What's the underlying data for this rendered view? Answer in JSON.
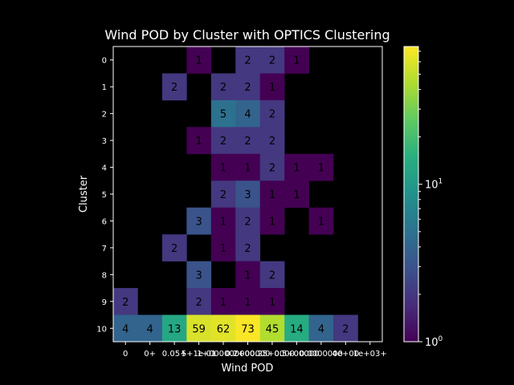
{
  "chart_data": {
    "type": "heatmap",
    "title": "Wind POD by Cluster with OPTICS Clustering",
    "xlabel": "Wind POD",
    "ylabel": "Cluster",
    "x_tick_labels": [
      "0",
      "0+",
      "0.05+",
      "5+1e-01",
      "1+00000000",
      "0.2+00000",
      "0.25+0000",
      "0.5+00000",
      "0.0000000",
      "4e+00",
      "1e+03+"
    ],
    "y_tick_labels": [
      "0",
      "1",
      "2",
      "3",
      "4",
      "5",
      "6",
      "7",
      "8",
      "9",
      "10"
    ],
    "values": [
      [
        null,
        null,
        null,
        1,
        null,
        2,
        2,
        1,
        null,
        null,
        null
      ],
      [
        null,
        null,
        2,
        null,
        2,
        2,
        1,
        null,
        null,
        null,
        null
      ],
      [
        null,
        null,
        null,
        null,
        5,
        4,
        2,
        null,
        null,
        null,
        null
      ],
      [
        null,
        null,
        null,
        1,
        2,
        2,
        2,
        null,
        null,
        null,
        null
      ],
      [
        null,
        null,
        null,
        null,
        1,
        1,
        2,
        1,
        1,
        null,
        null
      ],
      [
        null,
        null,
        null,
        null,
        2,
        3,
        1,
        1,
        null,
        null,
        null
      ],
      [
        null,
        null,
        null,
        3,
        1,
        2,
        1,
        null,
        1,
        null,
        null
      ],
      [
        null,
        null,
        2,
        null,
        1,
        2,
        null,
        null,
        null,
        null,
        null
      ],
      [
        null,
        null,
        null,
        3,
        null,
        1,
        2,
        null,
        null,
        null,
        null
      ],
      [
        2,
        null,
        null,
        2,
        1,
        1,
        1,
        null,
        null,
        null,
        null
      ],
      [
        4,
        4,
        13,
        59,
        62,
        73,
        45,
        14,
        4,
        2,
        null
      ]
    ],
    "colorbar": {
      "scale": "log",
      "range": [
        1,
        75
      ],
      "colormap": "viridis",
      "ticks": [
        "10^0",
        "10^1"
      ]
    },
    "grid": false,
    "legend": "none"
  }
}
